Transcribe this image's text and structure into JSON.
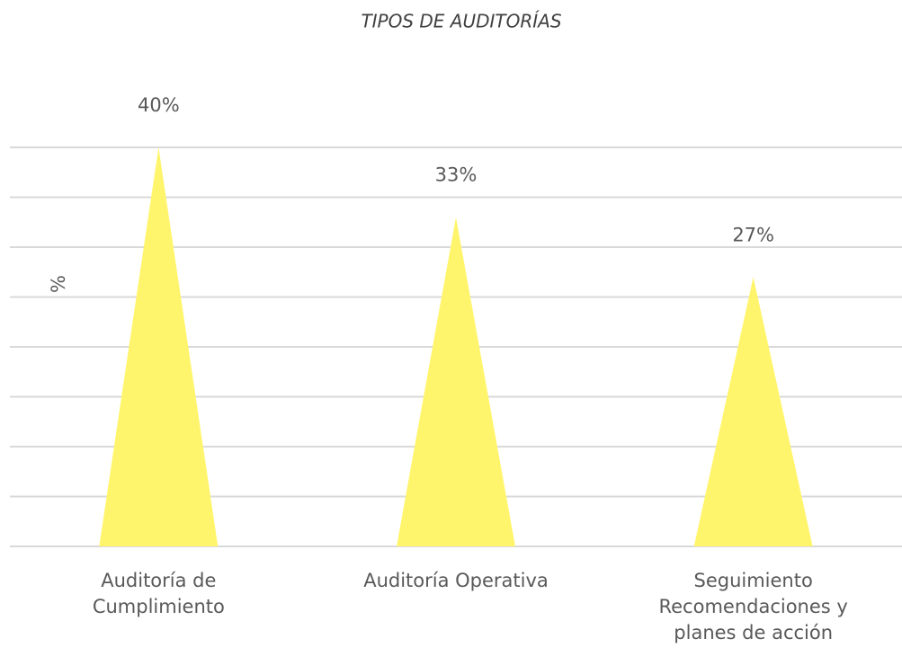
{
  "chart_data": {
    "type": "bar",
    "title": "TIPOS DE AUDITORÍAS",
    "y_label": "%",
    "categories": [
      "Auditoría de Cumplimiento",
      "Auditoría Operativa",
      "Seguimiento Recomendaciones y planes de acción"
    ],
    "values": [
      40,
      33,
      27
    ],
    "value_labels": [
      "40%",
      "33%",
      "27%"
    ],
    "color": "#fff56d",
    "ylim": [
      0,
      40
    ],
    "yticks": [
      0,
      5,
      10,
      15,
      20,
      25,
      30,
      35,
      40
    ],
    "grid": true
  }
}
